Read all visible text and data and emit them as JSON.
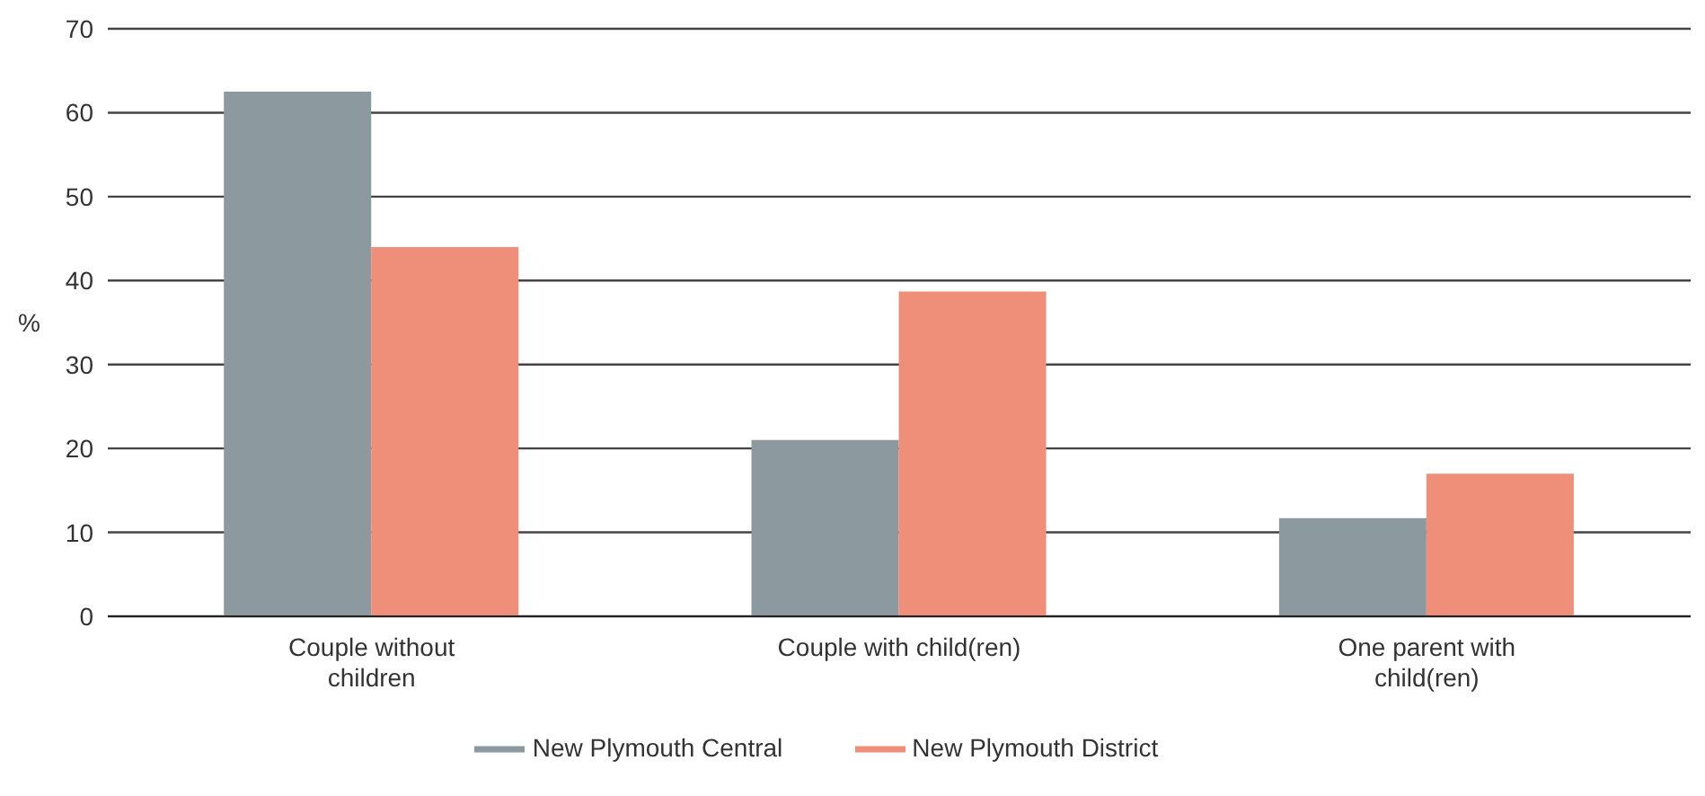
{
  "chart_data": {
    "type": "bar",
    "ylabel": "%",
    "categories": [
      "Couple without children",
      "Couple with child(ren)",
      "One parent with child(ren)"
    ],
    "series": [
      {
        "name": "New Plymouth Central",
        "color": "#8c999e",
        "values": [
          62.5,
          21,
          11.7
        ]
      },
      {
        "name": "New Plymouth District",
        "color": "#ef8f79",
        "values": [
          44,
          38.7,
          17
        ]
      }
    ],
    "ylim": [
      0,
      70
    ],
    "yticks": [
      0,
      10,
      20,
      30,
      40,
      50,
      60,
      70
    ],
    "grid": "y",
    "legend": "bottom"
  }
}
